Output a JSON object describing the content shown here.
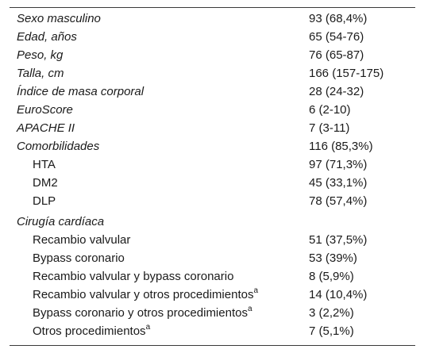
{
  "table": {
    "rows": [
      {
        "label": "Sexo masculino",
        "value": "93 (68,4%)",
        "style": "italic",
        "indent": false,
        "sup": ""
      },
      {
        "label": "Edad, años",
        "value": "65 (54-76)",
        "style": "italic",
        "indent": false,
        "sup": ""
      },
      {
        "label": "Peso, kg",
        "value": "76 (65-87)",
        "style": "italic",
        "indent": false,
        "sup": ""
      },
      {
        "label": "Talla, cm",
        "value": "166 (157-175)",
        "style": "italic",
        "indent": false,
        "sup": ""
      },
      {
        "label": "Índice de masa corporal",
        "value": "28 (24-32)",
        "style": "italic",
        "indent": false,
        "sup": ""
      },
      {
        "label": "EuroScore",
        "value": "6 (2-10)",
        "style": "italic",
        "indent": false,
        "sup": ""
      },
      {
        "label": "APACHE II",
        "value": "7 (3-11)",
        "style": "italic",
        "indent": false,
        "sup": ""
      },
      {
        "label": "Comorbilidades",
        "value": "116 (85,3%)",
        "style": "italic",
        "indent": false,
        "sup": ""
      },
      {
        "label": "HTA",
        "value": "97 (71,3%)",
        "style": "normal",
        "indent": true,
        "sup": ""
      },
      {
        "label": "DM2",
        "value": "45 (33,1%)",
        "style": "normal",
        "indent": true,
        "sup": ""
      },
      {
        "label": "DLP",
        "value": "78 (57,4%)",
        "style": "normal",
        "indent": true,
        "sup": ""
      },
      {
        "label": "Cirugía cardíaca",
        "value": "",
        "style": "italic",
        "indent": false,
        "sup": ""
      },
      {
        "label": "Recambio valvular",
        "value": "51 (37,5%)",
        "style": "normal",
        "indent": true,
        "sup": ""
      },
      {
        "label": "Bypass coronario",
        "value": "53 (39%)",
        "style": "normal",
        "indent": true,
        "sup": ""
      },
      {
        "label": "Recambio valvular y bypass coronario",
        "value": "8 (5,9%)",
        "style": "normal",
        "indent": true,
        "sup": ""
      },
      {
        "label": "Recambio valvular y otros procedimientos",
        "value": "14 (10,4%)",
        "style": "normal",
        "indent": true,
        "sup": "a"
      },
      {
        "label": "Bypass coronario y otros procedimientos",
        "value": "3 (2,2%)",
        "style": "normal",
        "indent": true,
        "sup": "a"
      },
      {
        "label": "Otros procedimientos",
        "value": "7 (5,1%)",
        "style": "normal",
        "indent": true,
        "sup": "a"
      }
    ]
  }
}
